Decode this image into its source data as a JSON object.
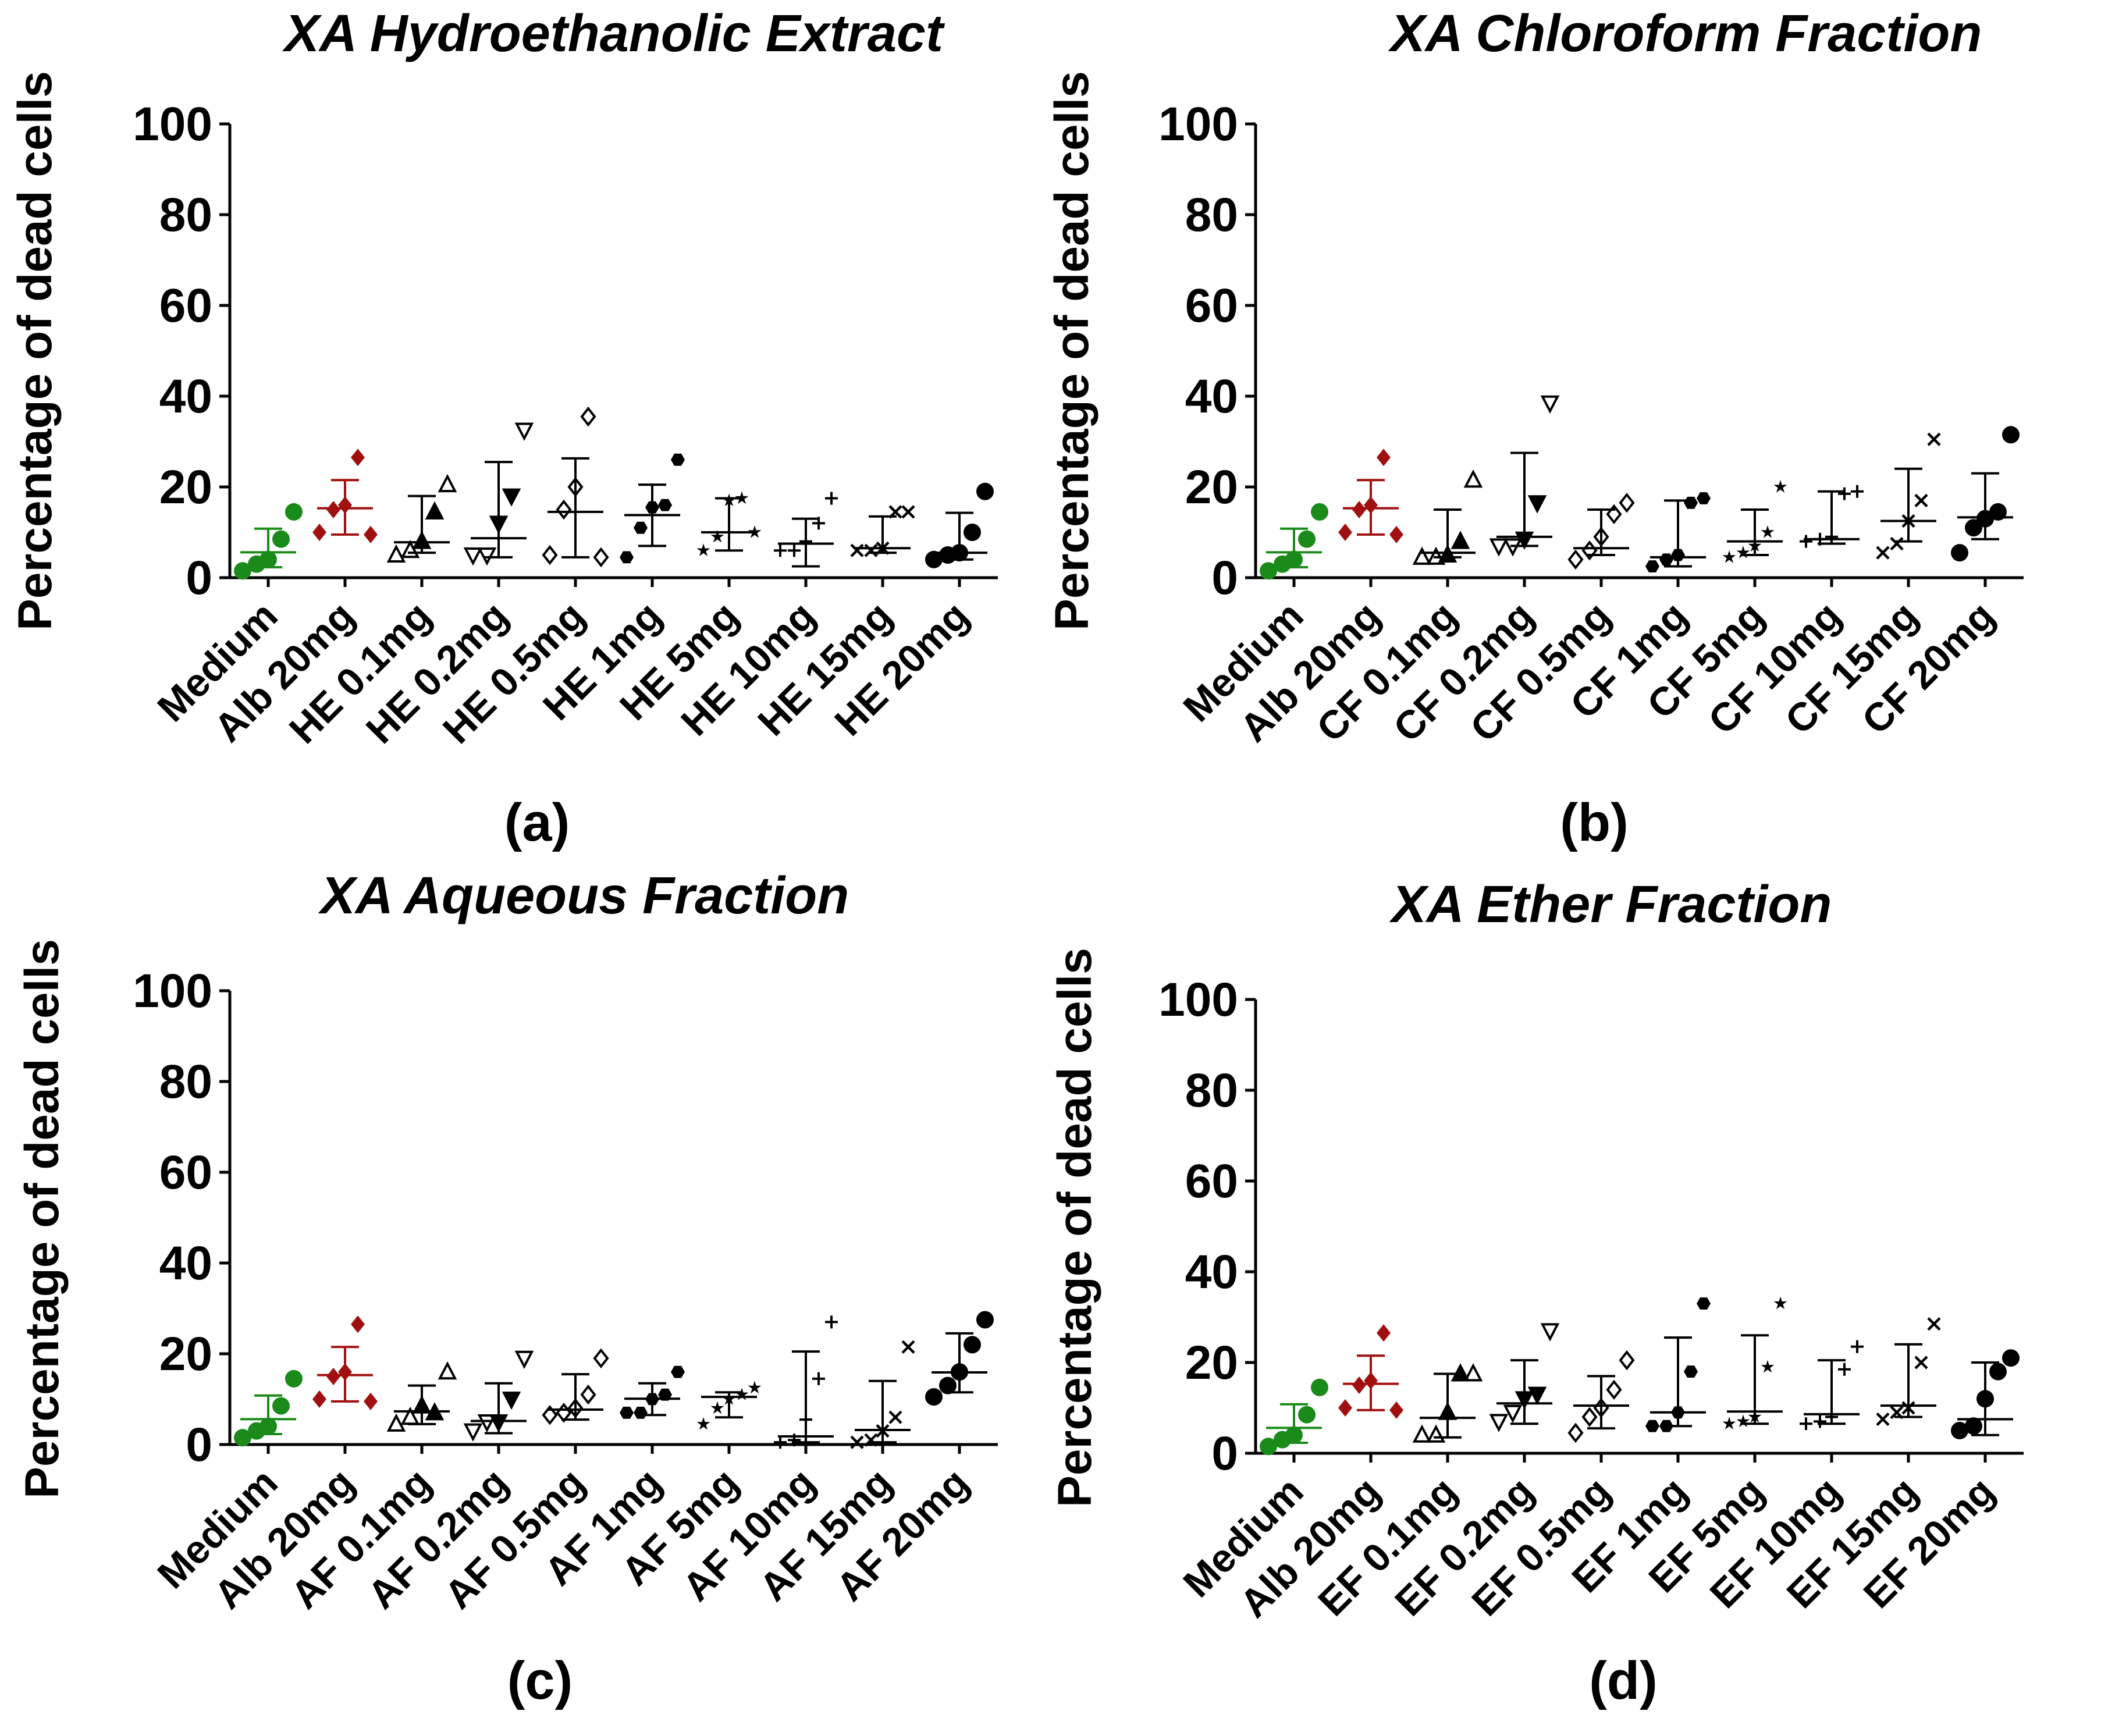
{
  "colors": {
    "medium": "#1a8a1a",
    "albendazole": "#a01010",
    "extract": "#000000"
  },
  "chart_data": [
    {
      "type": "scatter",
      "panel_label": "(a)",
      "title": "XA Hydroethanolic Extract",
      "xlabel": "",
      "ylabel": "Percentage of dead cells",
      "ylim": [
        0,
        100
      ],
      "yticks": [
        "0",
        "20",
        "40",
        "60",
        "80",
        "100"
      ],
      "categories": [
        "Medium",
        "Alb 20mg",
        "HE 0.1mg",
        "HE 0.2mg",
        "HE 0.5mg",
        "HE 1mg",
        "HE 5mg",
        "HE 10mg",
        "HE 15mg",
        "HE 20mg"
      ],
      "markers": [
        "circle",
        "diamond",
        "tri-up",
        "tri-down",
        "diamond-open",
        "hex",
        "star",
        "plus",
        "cross",
        "circle"
      ],
      "mean": [
        5.6,
        15.3,
        7.8,
        8.7,
        14.5,
        13.8,
        10,
        7.5,
        6.5,
        5.5
      ],
      "sd_low": [
        2.3,
        9.5,
        5.5,
        4.5,
        4.5,
        7,
        6,
        2.5,
        5.5,
        4
      ],
      "sd_high": [
        10.8,
        21.5,
        18,
        25.5,
        26.3,
        20.5,
        17.5,
        13,
        13.5,
        14.3
      ],
      "points": [
        [
          1.5,
          3,
          4,
          8.5,
          14.5
        ],
        [
          10,
          15,
          16,
          26.5,
          9.5
        ],
        [
          5,
          6,
          8,
          14.5,
          20.5
        ],
        [
          5,
          5,
          12,
          18,
          32.5
        ],
        [
          5,
          15,
          20,
          35.5,
          4.5
        ],
        [
          4.5,
          11,
          15.5,
          16,
          26
        ],
        [
          6,
          9,
          17,
          17.5,
          10
        ],
        [
          6,
          6,
          8,
          12,
          17.5
        ],
        [
          6,
          6,
          6.5,
          14.5,
          14.5
        ],
        [
          4,
          5,
          5.5,
          10,
          19
        ]
      ]
    },
    {
      "type": "scatter",
      "panel_label": "(b)",
      "title": "XA Chloroform Fraction",
      "xlabel": "",
      "ylabel": "Percentage of dead cells",
      "ylim": [
        0,
        100
      ],
      "yticks": [
        "0",
        "20",
        "40",
        "60",
        "80",
        "100"
      ],
      "categories": [
        "Medium",
        "Alb 20mg",
        "CF 0.1mg",
        "CF 0.2mg",
        "CF 0.5mg",
        "CF 1mg",
        "CF 5mg",
        "CF 10mg",
        "CF 15mg",
        "CF 20mg"
      ],
      "markers": [
        "circle",
        "diamond",
        "tri-up",
        "tri-down",
        "diamond-open",
        "hex",
        "star",
        "plus",
        "cross",
        "circle"
      ],
      "mean": [
        5.6,
        15.3,
        5.5,
        9,
        6.5,
        4.5,
        8,
        8.5,
        12.5,
        13.3
      ],
      "sd_low": [
        2.3,
        9.5,
        4.5,
        7,
        5,
        2.5,
        5,
        7.5,
        8,
        8.5
      ],
      "sd_high": [
        10.8,
        21.5,
        15,
        27.5,
        15,
        17,
        15,
        19,
        24,
        23
      ],
      "points": [
        [
          1.5,
          3,
          4,
          8.5,
          14.5
        ],
        [
          10,
          15,
          16,
          26.5,
          9.5
        ],
        [
          4.5,
          4.5,
          5,
          8,
          21.5
        ],
        [
          7,
          7,
          8.5,
          16.5,
          38.5
        ],
        [
          4,
          6,
          9,
          14,
          16.5
        ],
        [
          2.5,
          4,
          5,
          16.5,
          17.5
        ],
        [
          4.5,
          5.5,
          7,
          10,
          20
        ],
        [
          8,
          8.5,
          9,
          18.5,
          19
        ],
        [
          5.5,
          7.5,
          12.5,
          17,
          30.5
        ],
        [
          5.5,
          11,
          13,
          14.5,
          31.5
        ]
      ]
    },
    {
      "type": "scatter",
      "panel_label": "(c)",
      "title": "XA Aqueous Fraction",
      "xlabel": "",
      "ylabel": "Percentage of dead cells",
      "ylim": [
        0,
        100
      ],
      "yticks": [
        "0",
        "20",
        "40",
        "60",
        "80",
        "100"
      ],
      "categories": [
        "Medium",
        "Alb 20mg",
        "AF 0.1mg",
        "AF 0.2mg",
        "AF 0.5mg",
        "AF 1mg",
        "AF 5mg",
        "AF 10mg",
        "AF 15mg",
        "AF 20mg"
      ],
      "markers": [
        "circle",
        "diamond",
        "tri-up",
        "tri-down",
        "diamond-open",
        "hex",
        "star",
        "plus",
        "cross",
        "circle"
      ],
      "mean": [
        5.6,
        15.3,
        7.3,
        5.2,
        7.7,
        10.1,
        10.5,
        1.8,
        3.2,
        15.9
      ],
      "sd_low": [
        2.3,
        9.5,
        4.5,
        2.5,
        5.5,
        6.5,
        6,
        0.5,
        0.5,
        11.5
      ],
      "sd_high": [
        10.8,
        21.5,
        13,
        13.5,
        15.5,
        13.5,
        11.5,
        20.5,
        14,
        24.5
      ],
      "points": [
        [
          1.5,
          3,
          4,
          8.5,
          14.5
        ],
        [
          10,
          15,
          16,
          26.5,
          9.5
        ],
        [
          4.5,
          6,
          8.5,
          7,
          16
        ],
        [
          3,
          5,
          5,
          10,
          19
        ],
        [
          6.5,
          7,
          8,
          11,
          19
        ],
        [
          7,
          7,
          10,
          11,
          16
        ],
        [
          4.5,
          8,
          10,
          11,
          12.5
        ],
        [
          0.5,
          1,
          5.5,
          14.5,
          27
        ],
        [
          0.5,
          1,
          3,
          6,
          21.5
        ],
        [
          10.5,
          13,
          16,
          22,
          27.5
        ]
      ]
    },
    {
      "type": "scatter",
      "panel_label": "(d)",
      "title": "XA Ether Fraction",
      "xlabel": "",
      "ylabel": "Percentage of dead cells",
      "ylim": [
        0,
        100
      ],
      "yticks": [
        "0",
        "20",
        "40",
        "60",
        "80",
        "100"
      ],
      "categories": [
        "Medium",
        "Alb 20mg",
        "EF 0.1mg",
        "EF 0.2mg",
        "EF 0.5mg",
        "EF 1mg",
        "EF 5mg",
        "EF 10mg",
        "EF 15mg",
        "EF 20mg"
      ],
      "markers": [
        "circle",
        "diamond",
        "tri-up",
        "tri-down",
        "diamond-open",
        "hex",
        "star",
        "plus",
        "cross",
        "circle"
      ],
      "mean": [
        5.6,
        15.3,
        7.8,
        11,
        10.5,
        9,
        9.2,
        8.6,
        10.5,
        7.5
      ],
      "sd_low": [
        2.3,
        9.5,
        3.5,
        6.5,
        5.5,
        6,
        6.5,
        6.5,
        8,
        4
      ],
      "sd_high": [
        10.8,
        21.5,
        17.5,
        20.5,
        17,
        25.5,
        26,
        20.5,
        24,
        20
      ],
      "points": [
        [
          1.5,
          3,
          4,
          8.5,
          14.5
        ],
        [
          10,
          15,
          16,
          26.5,
          9.5
        ],
        [
          4,
          4,
          9,
          17.5,
          17.5
        ],
        [
          7,
          9,
          12,
          13,
          27
        ],
        [
          4.5,
          8,
          10,
          14,
          20.5
        ],
        [
          6,
          6,
          9,
          18,
          33
        ],
        [
          6.5,
          7,
          8,
          19,
          33
        ],
        [
          6.5,
          7,
          8,
          18.5,
          23.5
        ],
        [
          7.5,
          9,
          10,
          20,
          28.5
        ],
        [
          5,
          6,
          12,
          18,
          21
        ]
      ]
    }
  ]
}
